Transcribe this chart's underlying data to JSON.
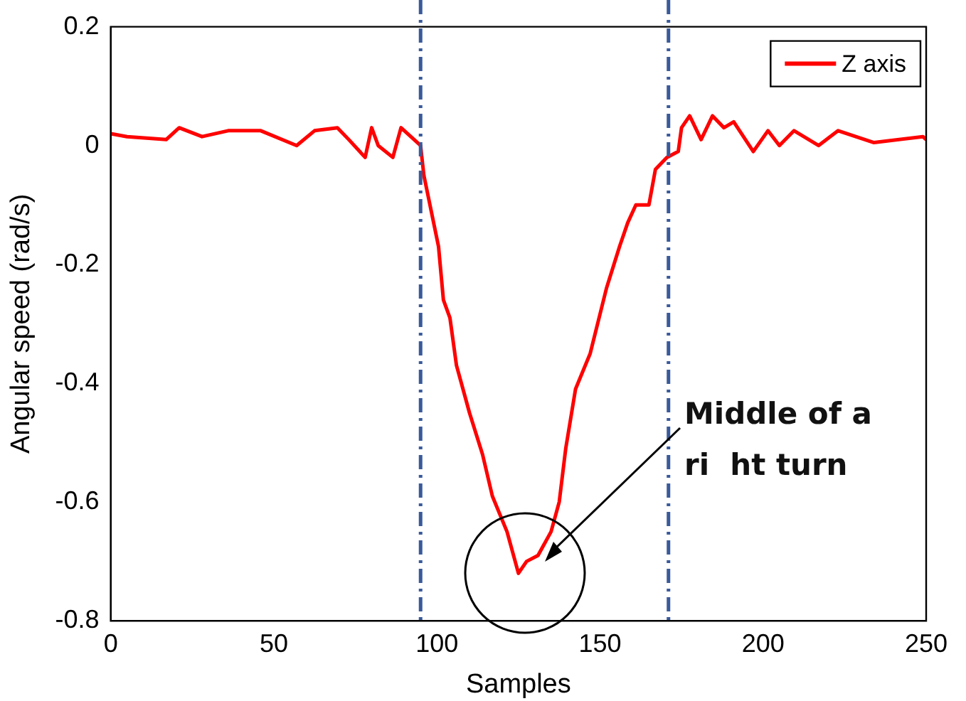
{
  "chart_data": {
    "type": "line",
    "xlabel": "Samples",
    "ylabel": "Angular speed (rad/s)",
    "series": [
      {
        "name": "Z axis",
        "color": "#ff0000",
        "x": [
          0,
          5,
          17,
          21,
          28,
          36,
          46,
          57,
          62.5,
          69.5,
          73,
          78,
          80,
          82,
          86.5,
          89,
          92,
          95,
          96,
          100.5,
          102,
          104,
          106,
          110,
          114,
          117,
          121.5,
          125,
          127.5,
          131,
          135,
          137.5,
          139.5,
          142.5,
          147,
          152,
          156,
          158.5,
          161,
          165,
          167,
          170.5,
          174,
          175,
          177.5,
          181,
          184.5,
          188,
          191,
          197,
          201.5,
          205,
          209.5,
          217,
          223,
          234,
          249,
          250
        ],
        "values": [
          0.02,
          0.015,
          0.01,
          0.03,
          0.015,
          0.025,
          0.025,
          0.0,
          0.025,
          0.03,
          0.01,
          -0.02,
          0.03,
          0.0,
          -0.02,
          0.03,
          0.015,
          0.0,
          -0.05,
          -0.17,
          -0.26,
          -0.29,
          -0.37,
          -0.45,
          -0.52,
          -0.59,
          -0.65,
          -0.72,
          -0.7,
          -0.69,
          -0.65,
          -0.6,
          -0.51,
          -0.41,
          -0.35,
          -0.24,
          -0.17,
          -0.13,
          -0.1,
          -0.1,
          -0.04,
          -0.02,
          -0.01,
          0.03,
          0.05,
          0.01,
          0.05,
          0.03,
          0.04,
          -0.01,
          0.025,
          0.0,
          0.025,
          0.0,
          0.025,
          0.005,
          0.015,
          0.01
        ]
      }
    ],
    "xlim": [
      0,
      250
    ],
    "xticks": [
      0,
      50,
      100,
      150,
      200,
      250
    ],
    "ylim": [
      -0.8,
      0.2
    ],
    "yticks": [
      -0.8,
      -0.6,
      -0.4,
      -0.2,
      0,
      0.2
    ],
    "grid": false,
    "legend": "top right",
    "marker": "none",
    "line_style": "solid",
    "ref_lines": [
      {
        "axis": "x",
        "value": 95,
        "color": "#3a5a9a",
        "line_style": "dashed"
      },
      {
        "axis": "x",
        "value": 171,
        "color": "#3a5a9a",
        "line_style": "dashed"
      }
    ],
    "annotations": [
      "Middle of a ri  ht turn"
    ]
  }
}
